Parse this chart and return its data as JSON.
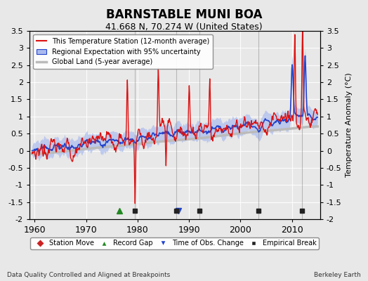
{
  "title": "BARNSTABLE MUNI BOA",
  "subtitle": "41.668 N, 70.274 W (United States)",
  "ylabel": "Temperature Anomaly (°C)",
  "xlim": [
    1959,
    2015.5
  ],
  "ylim": [
    -2.0,
    3.5
  ],
  "yticks": [
    -2,
    -1.5,
    -1,
    -0.5,
    0,
    0.5,
    1,
    1.5,
    2,
    2.5,
    3,
    3.5
  ],
  "xticks": [
    1960,
    1970,
    1980,
    1990,
    2000,
    2010
  ],
  "footer_left": "Data Quality Controlled and Aligned at Breakpoints",
  "footer_right": "Berkeley Earth",
  "station_move_x": [],
  "record_gap_x": [
    1976.5
  ],
  "time_obs_change_x": [
    1988.0
  ],
  "empirical_break_x": [
    1979.5,
    1987.5,
    1992.0,
    2003.5,
    2012.0
  ],
  "bg_color": "#e8e8e8",
  "plot_bg_color": "#e8e8e8"
}
